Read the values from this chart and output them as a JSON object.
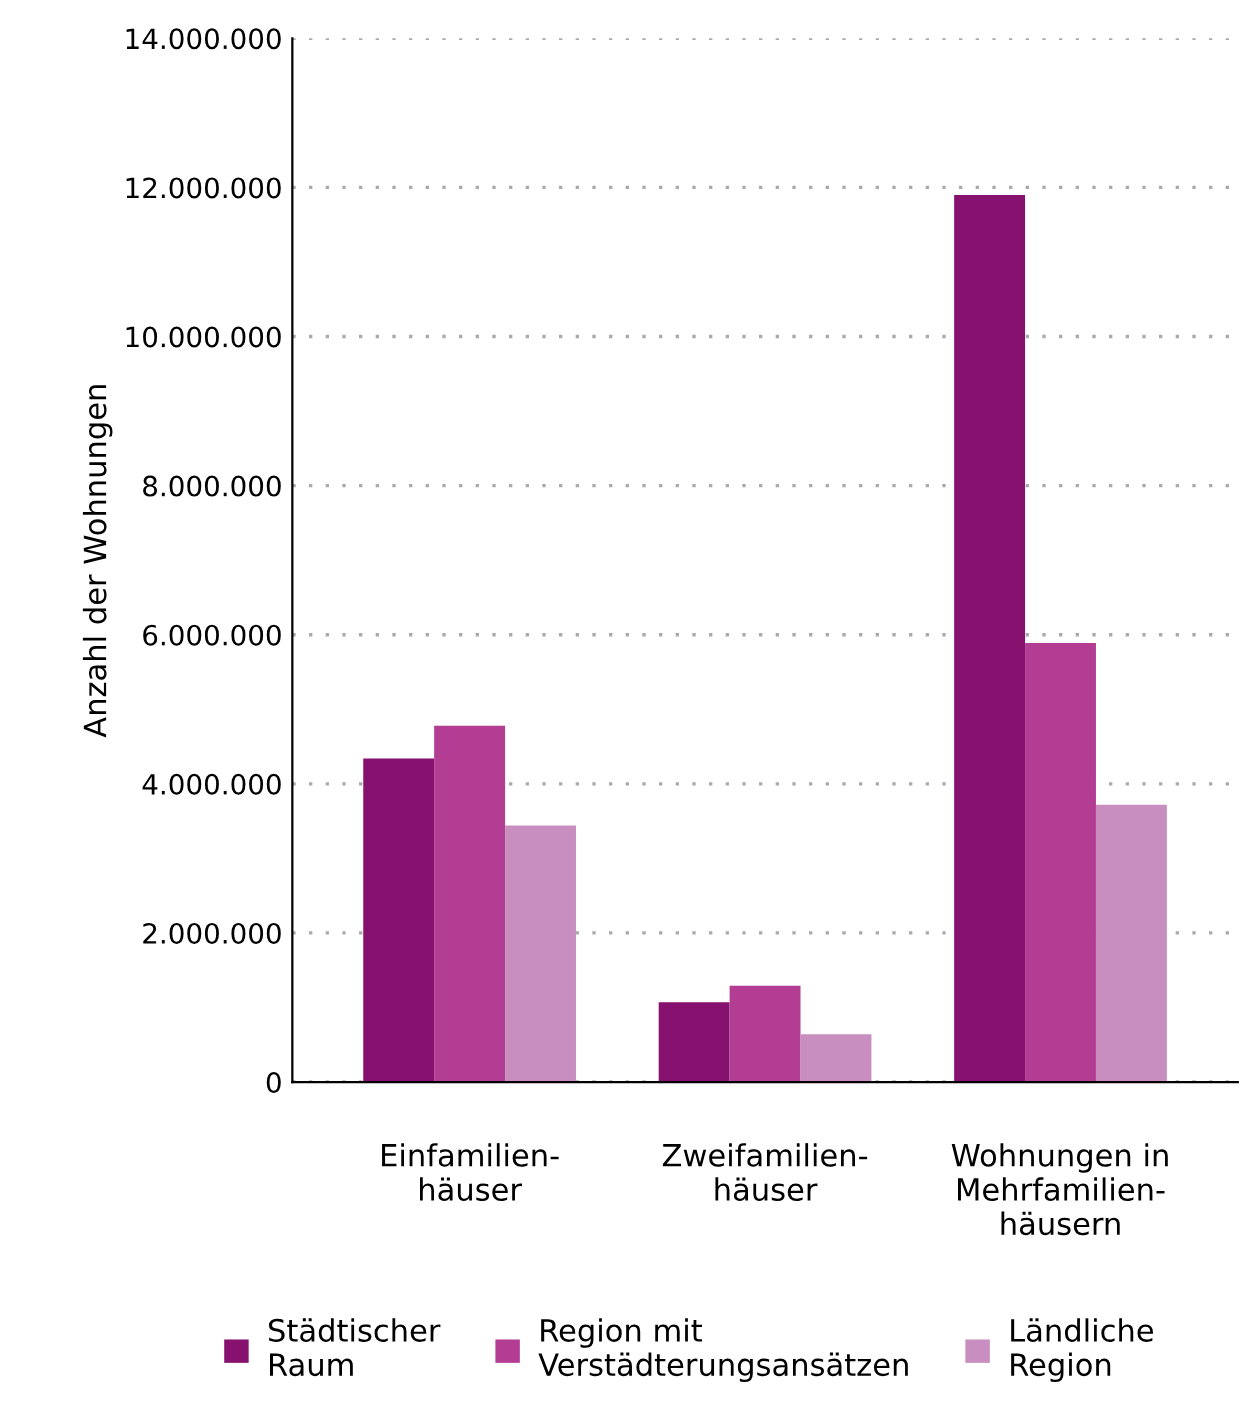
{
  "chart_data": {
    "type": "bar",
    "ylabel": "Anzahl der Wohnungen",
    "categories": [
      "Einfamilien-\nhäuser",
      "Zweifamilien-\nhäuser",
      "Wohnungen in\nMehrfamilien-\nhäusern"
    ],
    "series": [
      {
        "name": "Städtischer\nRaum",
        "color": "#87116f",
        "values": [
          4340000,
          1070000,
          11900000
        ]
      },
      {
        "name": "Region mit\nVerstädterungsansätzen",
        "color": "#b43d94",
        "values": [
          4780000,
          1290000,
          5890000
        ]
      },
      {
        "name": "Ländliche\nRegion",
        "color": "#c78ebf",
        "values": [
          3440000,
          640000,
          3720000
        ]
      }
    ],
    "ylim": [
      0,
      14000000
    ],
    "yticks": [
      {
        "value": 0,
        "label": "0"
      },
      {
        "value": 2000000,
        "label": "2.000.000"
      },
      {
        "value": 4000000,
        "label": "4.000.000"
      },
      {
        "value": 6000000,
        "label": "6.000.000"
      },
      {
        "value": 8000000,
        "label": "8.000.000"
      },
      {
        "value": 10000000,
        "label": "10.000.000"
      },
      {
        "value": 12000000,
        "label": "12.000.000"
      },
      {
        "value": 14000000,
        "label": "14.000.000"
      }
    ],
    "grid": "y",
    "legend": "bottom"
  }
}
